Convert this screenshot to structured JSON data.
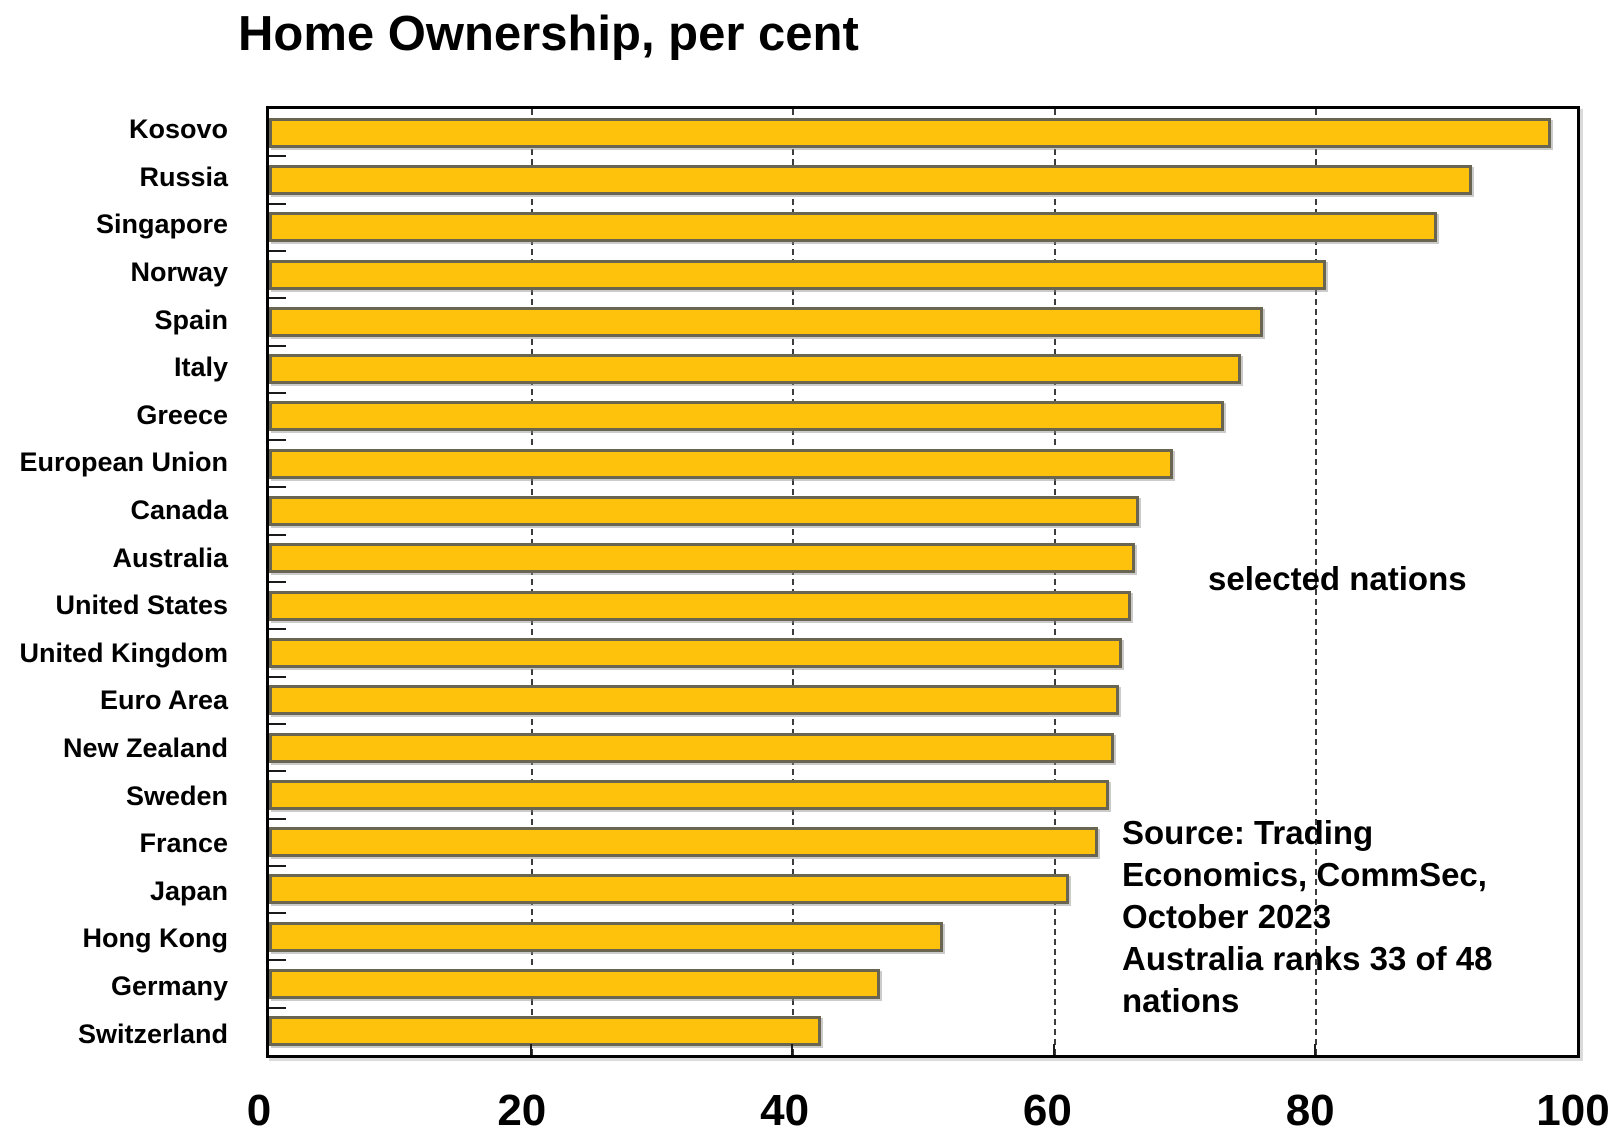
{
  "chart_data": {
    "type": "bar",
    "orientation": "horizontal",
    "title": "Home Ownership, per cent",
    "categories": [
      "Kosovo",
      "Russia",
      "Singapore",
      "Norway",
      "Spain",
      "Italy",
      "Greece",
      "European Union",
      "Canada",
      "Australia",
      "United States",
      "United Kingdom",
      "Euro Area",
      "New Zealand",
      "Sweden",
      "France",
      "Japan",
      "Hong Kong",
      "Germany",
      "Switzerland"
    ],
    "values": [
      98,
      92,
      89.3,
      80.8,
      76,
      74.3,
      73,
      69.1,
      66.5,
      66.2,
      65.9,
      65.2,
      65,
      64.6,
      64.2,
      63.4,
      61.2,
      51.5,
      46.7,
      42.2
    ],
    "xlabel": "",
    "ylabel": "",
    "xlim": [
      0,
      100
    ],
    "xticks": [
      0,
      20,
      40,
      60,
      80,
      100
    ],
    "grid": "dashed-vertical",
    "legend": "none",
    "bar_color": "#FEC20D",
    "bar_border_color": "#6A6550"
  },
  "annotations": {
    "selected_nations": "selected nations",
    "source": "Source: Trading\nEconomics, CommSec,\nOctober 2023\nAustralia ranks 33 of 48\nnations"
  }
}
